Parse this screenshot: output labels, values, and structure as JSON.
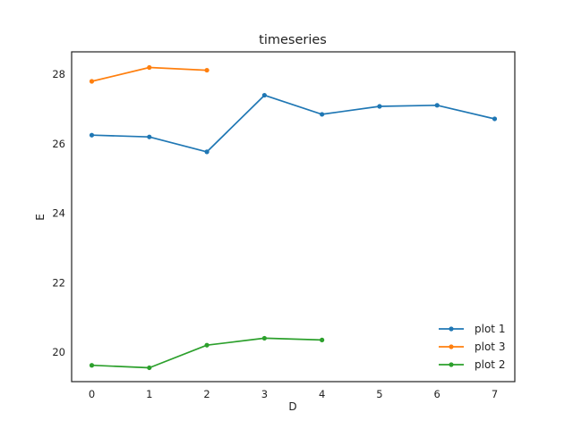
{
  "chart_data": {
    "type": "line",
    "title": "timeseries",
    "xlabel": "D",
    "ylabel": "E",
    "xlim": [
      -0.35,
      7.35
    ],
    "ylim": [
      19.15,
      28.65
    ],
    "xticks": [
      0,
      1,
      2,
      3,
      4,
      5,
      6,
      7
    ],
    "yticks": [
      20,
      22,
      24,
      26,
      28
    ],
    "grid": false,
    "legend_position": "lower-right",
    "series": [
      {
        "name": "plot 1",
        "color": "#1f77b4",
        "marker": "circle",
        "x": [
          0,
          1,
          2,
          3,
          4,
          5,
          6,
          7
        ],
        "y": [
          26.25,
          26.2,
          25.77,
          27.4,
          26.85,
          27.08,
          27.11,
          26.72
        ]
      },
      {
        "name": "plot 3",
        "color": "#ff7f0e",
        "marker": "circle",
        "x": [
          0,
          1,
          2
        ],
        "y": [
          27.8,
          28.2,
          28.12
        ]
      },
      {
        "name": "plot 2",
        "color": "#2ca02c",
        "marker": "circle",
        "x": [
          0,
          1,
          2,
          3,
          4
        ],
        "y": [
          19.62,
          19.55,
          20.2,
          20.4,
          20.35
        ]
      }
    ]
  }
}
